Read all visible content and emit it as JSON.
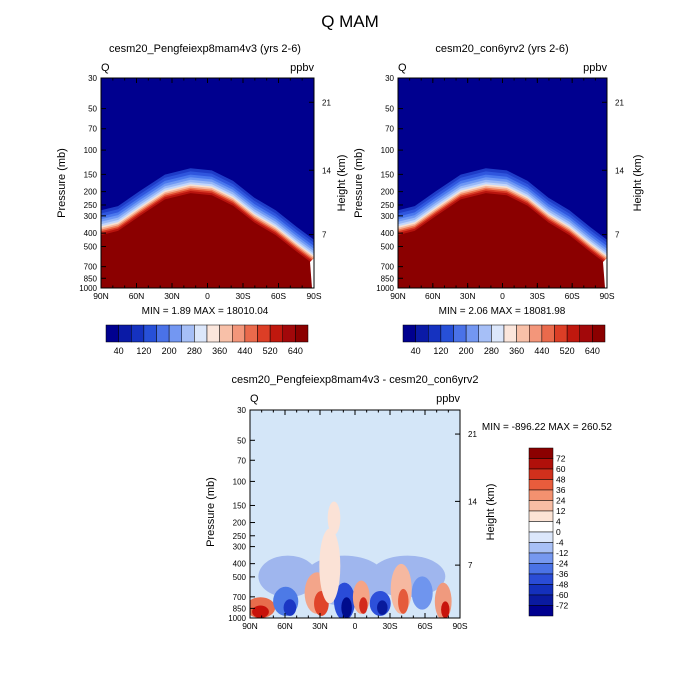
{
  "title": "Q MAM",
  "colors": {
    "dark_blue": "#00008f",
    "dark_red": "#8b0000",
    "panel_diff_bg": "#d4e6f8"
  },
  "chart_data": [
    {
      "type": "heatmap",
      "panel": "top-left",
      "title": "cesm20_Pengfeiexp8mam4v3 (yrs 2-6)",
      "left_label": "Q",
      "right_label": "ppbv",
      "ylabel": "Pressure (mb)",
      "ylabel_right": "Height (km)",
      "x_ticks": [
        "90N",
        "60N",
        "30N",
        "0",
        "30S",
        "60S",
        "90S"
      ],
      "y_ticks": [
        "30",
        "50",
        "70",
        "100",
        "150",
        "200",
        "250",
        "300",
        "400",
        "500",
        "700",
        "850",
        "1000"
      ],
      "y_ticks_right": [
        "21",
        "14",
        "7"
      ],
      "minmax_text": "MIN =   1.89  MAX = 18010.04",
      "colorbar_labels": [
        "40",
        "120",
        "200",
        "280",
        "360",
        "440",
        "520",
        "640"
      ]
    },
    {
      "type": "heatmap",
      "panel": "top-right",
      "title": "cesm20_con6yrv2 (yrs 2-6)",
      "left_label": "Q",
      "right_label": "ppbv",
      "ylabel": "Pressure (mb)",
      "ylabel_right": "Height (km)",
      "x_ticks": [
        "90N",
        "60N",
        "30N",
        "0",
        "30S",
        "60S",
        "90S"
      ],
      "y_ticks": [
        "30",
        "50",
        "70",
        "100",
        "150",
        "200",
        "250",
        "300",
        "400",
        "500",
        "700",
        "850",
        "1000"
      ],
      "y_ticks_right": [
        "21",
        "14",
        "7"
      ],
      "minmax_text": "MIN =   2.06  MAX = 18081.98",
      "colorbar_labels": [
        "40",
        "120",
        "200",
        "280",
        "360",
        "440",
        "520",
        "640"
      ]
    },
    {
      "type": "heatmap",
      "panel": "bottom-difference",
      "title": "cesm20_Pengfeiexp8mam4v3 - cesm20_con6yrv2",
      "left_label": "Q",
      "right_label": "ppbv",
      "ylabel": "Pressure (mb)",
      "ylabel_right": "Height (km)",
      "x_ticks": [
        "90N",
        "60N",
        "30N",
        "0",
        "30S",
        "60S",
        "90S"
      ],
      "y_ticks": [
        "30",
        "50",
        "70",
        "100",
        "150",
        "200",
        "250",
        "300",
        "400",
        "500",
        "700",
        "850",
        "1000"
      ],
      "y_ticks_right": [
        "21",
        "14",
        "7"
      ],
      "minmax_text": "MIN = -896.22  MAX = 260.52",
      "colorbar_labels": [
        "72",
        "60",
        "48",
        "36",
        "24",
        "12",
        "4",
        "0",
        "-4",
        "-12",
        "-24",
        "-36",
        "-48",
        "-60",
        "-72"
      ]
    }
  ]
}
